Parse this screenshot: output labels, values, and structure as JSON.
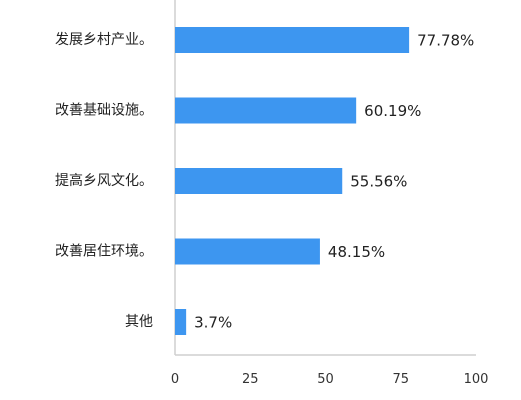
{
  "chart_data": {
    "type": "bar",
    "orientation": "horizontal",
    "categories": [
      "发展乡村产业。",
      "改善基础设施。",
      "提高乡风文化。",
      "改善居住环境。",
      "其他"
    ],
    "values": [
      77.78,
      60.19,
      55.56,
      48.15,
      3.7
    ],
    "value_labels": [
      "77.78%",
      "60.19%",
      "55.56%",
      "48.15%",
      "3.7%"
    ],
    "xlim": [
      0,
      100
    ],
    "xticks": [
      0,
      25,
      50,
      75,
      100
    ],
    "tick_labels": [
      "0",
      "25",
      "50",
      "75",
      "100"
    ],
    "title": "",
    "xlabel": "",
    "ylabel": "",
    "grid": false,
    "legend": "none",
    "bar_color": "#3d96f0"
  }
}
